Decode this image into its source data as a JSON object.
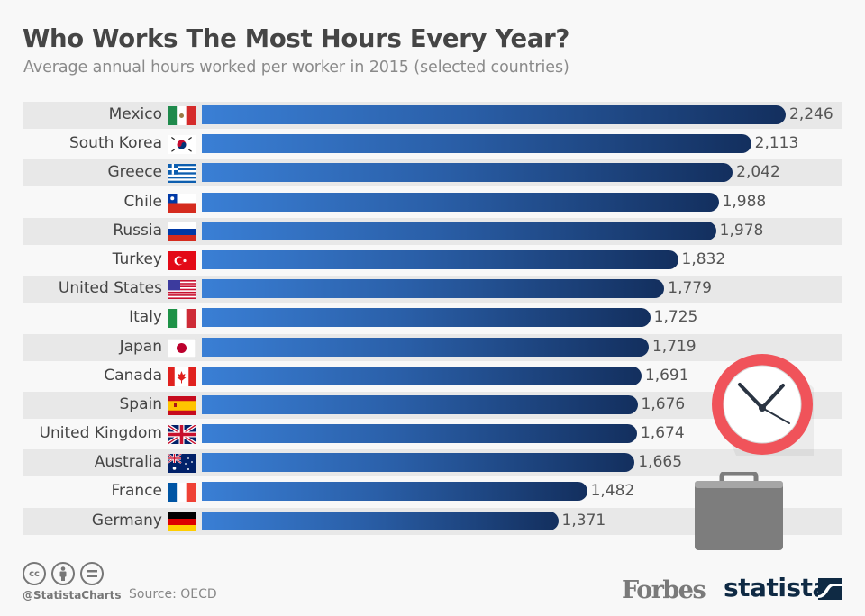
{
  "header": {
    "title": "Who Works The Most Hours Every Year?",
    "subtitle": "Average annual hours worked per worker in 2015 (selected countries)"
  },
  "chart_data": {
    "type": "bar",
    "orientation": "horizontal",
    "title": "Who Works The Most Hours Every Year?",
    "subtitle": "Average annual hours worked per worker in 2015 (selected countries)",
    "xlabel": "",
    "ylabel": "",
    "categories": [
      "Mexico",
      "South Korea",
      "Greece",
      "Chile",
      "Russia",
      "Turkey",
      "United States",
      "Italy",
      "Japan",
      "Canada",
      "Spain",
      "United Kingdom",
      "Australia",
      "France",
      "Germany"
    ],
    "values": [
      2246,
      2113,
      2042,
      1988,
      1978,
      1832,
      1779,
      1725,
      1719,
      1691,
      1676,
      1674,
      1665,
      1482,
      1371
    ],
    "value_labels": [
      "2,246",
      "2,113",
      "2,042",
      "1,988",
      "1,978",
      "1,832",
      "1,779",
      "1,725",
      "1,719",
      "1,691",
      "1,676",
      "1,674",
      "1,665",
      "1,482",
      "1,371"
    ],
    "grid": false,
    "legend": null,
    "bar_color_start": "#3a7fd5",
    "bar_color_end": "#132f5e"
  },
  "rows": [
    {
      "label": "Mexico",
      "value": "2,246",
      "num": 2246,
      "flag": "mexico-flag"
    },
    {
      "label": "South Korea",
      "value": "2,113",
      "num": 2113,
      "flag": "south-korea-flag"
    },
    {
      "label": "Greece",
      "value": "2,042",
      "num": 2042,
      "flag": "greece-flag"
    },
    {
      "label": "Chile",
      "value": "1,988",
      "num": 1988,
      "flag": "chile-flag"
    },
    {
      "label": "Russia",
      "value": "1,978",
      "num": 1978,
      "flag": "russia-flag"
    },
    {
      "label": "Turkey",
      "value": "1,832",
      "num": 1832,
      "flag": "turkey-flag"
    },
    {
      "label": "United States",
      "value": "1,779",
      "num": 1779,
      "flag": "usa-flag"
    },
    {
      "label": "Italy",
      "value": "1,725",
      "num": 1725,
      "flag": "italy-flag"
    },
    {
      "label": "Japan",
      "value": "1,719",
      "num": 1719,
      "flag": "japan-flag"
    },
    {
      "label": "Canada",
      "value": "1,691",
      "num": 1691,
      "flag": "canada-flag"
    },
    {
      "label": "Spain",
      "value": "1,676",
      "num": 1676,
      "flag": "spain-flag"
    },
    {
      "label": "United Kingdom",
      "value": "1,674",
      "num": 1674,
      "flag": "uk-flag"
    },
    {
      "label": "Australia",
      "value": "1,665",
      "num": 1665,
      "flag": "australia-flag"
    },
    {
      "label": "France",
      "value": "1,482",
      "num": 1482,
      "flag": "france-flag"
    },
    {
      "label": "Germany",
      "value": "1,371",
      "num": 1371,
      "flag": "germany-flag"
    }
  ],
  "footer": {
    "handle": "@StatistaCharts",
    "source": "Source: OECD",
    "license_icons": [
      "cc-icon",
      "attribution-icon",
      "no-derivatives-icon"
    ],
    "cc_label": "cc",
    "partner_logo": "Forbes",
    "brand_logo": "statista"
  },
  "colors": {
    "stripe": "#e8e8e8",
    "background": "#f8f8f8",
    "clock_ring": "#f0535a",
    "briefcase": "#7d7d7d",
    "statista_navy": "#0f2a44"
  }
}
